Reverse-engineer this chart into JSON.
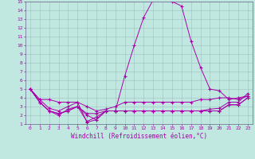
{
  "xlabel": "Windchill (Refroidissement éolien,°C)",
  "xlim": [
    -0.5,
    23.5
  ],
  "ylim": [
    1,
    15
  ],
  "xtick_labels": [
    "0",
    "1",
    "2",
    "3",
    "4",
    "5",
    "6",
    "7",
    "8",
    "9",
    "10",
    "11",
    "12",
    "13",
    "14",
    "15",
    "16",
    "17",
    "18",
    "19",
    "20",
    "21",
    "22",
    "23"
  ],
  "ytick_labels": [
    "1",
    "2",
    "3",
    "4",
    "5",
    "6",
    "7",
    "8",
    "9",
    "10",
    "11",
    "12",
    "13",
    "14",
    "15"
  ],
  "background_color": "#c0e8e0",
  "line_color": "#aa00aa",
  "grid_color": "#aacccc",
  "lines": [
    [
      5.0,
      3.8,
      3.8,
      3.5,
      3.5,
      3.5,
      1.2,
      1.5,
      2.5,
      2.5,
      6.5,
      10.0,
      13.2,
      15.2,
      15.5,
      15.0,
      14.5,
      10.5,
      7.5,
      5.0,
      4.8,
      3.8,
      4.0,
      4.2
    ],
    [
      5.0,
      3.8,
      2.8,
      2.5,
      3.0,
      3.5,
      3.0,
      2.5,
      2.7,
      3.0,
      3.5,
      3.5,
      3.5,
      3.5,
      3.5,
      3.5,
      3.5,
      3.5,
      3.8,
      3.8,
      4.0,
      4.0,
      3.8,
      4.2
    ],
    [
      5.0,
      3.5,
      2.5,
      2.0,
      2.7,
      3.0,
      2.2,
      2.2,
      2.5,
      2.5,
      2.5,
      2.5,
      2.5,
      2.5,
      2.5,
      2.5,
      2.5,
      2.5,
      2.5,
      2.7,
      2.8,
      3.5,
      3.5,
      4.5
    ],
    [
      5.0,
      3.5,
      2.5,
      2.2,
      2.5,
      3.0,
      2.0,
      1.5,
      2.5,
      2.5,
      2.5,
      2.5,
      2.5,
      2.5,
      2.5,
      2.5,
      2.5,
      2.5,
      2.5,
      2.5,
      2.5,
      3.2,
      3.2,
      4.0
    ],
    [
      5.0,
      3.5,
      2.5,
      2.2,
      2.5,
      3.0,
      1.3,
      1.8,
      2.5,
      2.5,
      2.5,
      2.5,
      2.5,
      2.5,
      2.5,
      2.5,
      2.5,
      2.5,
      2.5,
      2.5,
      2.5,
      3.2,
      3.2,
      4.0
    ]
  ]
}
